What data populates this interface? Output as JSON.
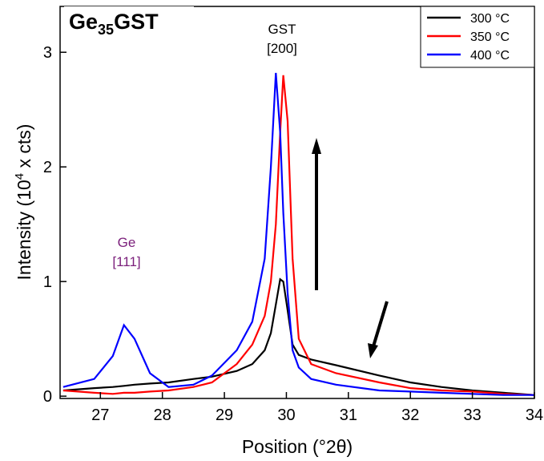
{
  "chart_data": {
    "type": "line",
    "title": [
      "Ge",
      "35",
      "GST"
    ],
    "xlabel": "Position (°2θ)",
    "ylabel": [
      "Intensity (10",
      "4",
      " x cts)"
    ],
    "annotations": [
      {
        "text": "GST"
      },
      {
        "text": "[200]"
      },
      {
        "text": "Ge"
      },
      {
        "text": "[111]"
      }
    ],
    "x": [
      26.4,
      26.9,
      27.2,
      27.38,
      27.55,
      27.8,
      28.1,
      28.5,
      28.8,
      29.2,
      29.45,
      29.65,
      29.75,
      29.83,
      29.9,
      29.95,
      30.02,
      30.1,
      30.2,
      30.4,
      30.8,
      31.5,
      32,
      32.5,
      33,
      33.5,
      34
    ],
    "series": [
      {
        "name": "300 °C",
        "color": "#000000",
        "values": [
          0.05,
          0.07,
          0.08,
          0.09,
          0.1,
          0.11,
          0.12,
          0.15,
          0.17,
          0.22,
          0.28,
          0.4,
          0.55,
          0.8,
          1.02,
          1.0,
          0.75,
          0.45,
          0.36,
          0.32,
          0.27,
          0.18,
          0.12,
          0.08,
          0.05,
          0.03,
          0.01
        ]
      },
      {
        "name": "350 °C",
        "color": "#ff0000",
        "values": [
          0.05,
          0.03,
          0.02,
          0.03,
          0.03,
          0.04,
          0.05,
          0.08,
          0.12,
          0.28,
          0.45,
          0.7,
          1.0,
          1.5,
          2.3,
          2.8,
          2.4,
          1.2,
          0.5,
          0.28,
          0.2,
          0.12,
          0.07,
          0.05,
          0.04,
          0.02,
          0.01
        ]
      },
      {
        "name": "400 °C",
        "color": "#0000ff",
        "values": [
          0.08,
          0.15,
          0.35,
          0.62,
          0.5,
          0.2,
          0.08,
          0.1,
          0.18,
          0.4,
          0.65,
          1.2,
          2.0,
          2.82,
          2.3,
          1.6,
          0.9,
          0.4,
          0.25,
          0.15,
          0.1,
          0.05,
          0.04,
          0.03,
          0.02,
          0.01,
          0.01
        ]
      }
    ],
    "xlim": [
      26.35,
      34
    ],
    "ylim": [
      -0.02,
      3.4
    ],
    "xticks": [
      27,
      28,
      29,
      30,
      31,
      32,
      33,
      34
    ],
    "yticks": [
      0,
      1,
      2,
      3
    ],
    "legend": "upper right"
  }
}
